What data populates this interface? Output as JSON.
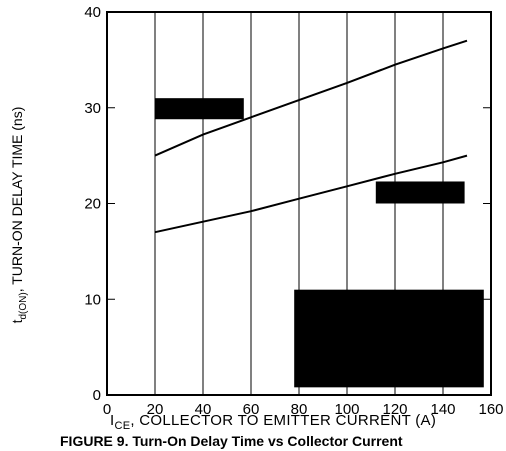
{
  "chart_data": {
    "type": "line",
    "xlabel": {
      "prefix": "I",
      "sub": "CE",
      "rest": ", COLLECTOR  TO  EMITTER  CURRENT (A)"
    },
    "ylabel": {
      "prefix": "t",
      "sub": "d(ON)",
      "rest": ", TURN-ON DELAY TIME (ns)"
    },
    "caption": "FIGURE 9. Turn-On Delay Time vs Collector Current",
    "xlim": [
      0,
      160
    ],
    "ylim": [
      0,
      40
    ],
    "x_ticks": [
      0,
      20,
      40,
      60,
      80,
      100,
      120,
      140,
      160
    ],
    "y_ticks": [
      0,
      10,
      20,
      30,
      40
    ],
    "grid": "vertical",
    "series": [
      {
        "x": [
          20,
          40,
          60,
          80,
          100,
          120,
          140,
          150
        ],
        "y": [
          25,
          27.2,
          29,
          30.8,
          32.6,
          34.5,
          36.2,
          37
        ]
      },
      {
        "x": [
          20,
          40,
          60,
          80,
          100,
          120,
          140,
          150
        ],
        "y": [
          17,
          18.1,
          19.2,
          20.5,
          21.8,
          23.1,
          24.3,
          25
        ]
      }
    ],
    "redactions": [
      {
        "x": [
          20,
          57
        ],
        "y": [
          28.8,
          31
        ]
      },
      {
        "x": [
          112,
          149
        ],
        "y": [
          20,
          22.3
        ]
      },
      {
        "x": [
          78,
          157
        ],
        "y": [
          0.8,
          11
        ]
      }
    ]
  }
}
